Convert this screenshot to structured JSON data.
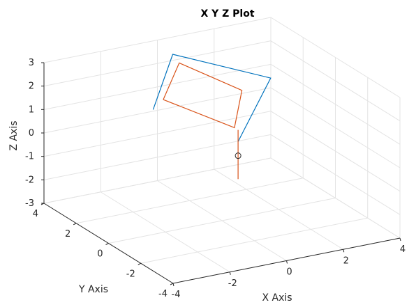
{
  "chart_data": {
    "type": "line3d",
    "title": "X Y Z Plot",
    "xlabel": "X Axis",
    "ylabel": "Y Axis",
    "zlabel": "Z Axis",
    "xlim": [
      -4,
      4
    ],
    "ylim": [
      -4,
      4
    ],
    "zlim": [
      -3,
      3
    ],
    "x_ticks": [
      "-4",
      "-2",
      "0",
      "2",
      "4"
    ],
    "y_ticks": [
      "-4",
      "-2",
      "0",
      "2",
      "4"
    ],
    "z_ticks": [
      "-3",
      "-2",
      "-1",
      "0",
      "1",
      "2",
      "3"
    ],
    "grid": true,
    "series": [
      {
        "color": "#0072BD",
        "points": [
          [
            -2.2,
            0.4,
            2.1
          ],
          [
            0.2,
            3.4,
            2.6
          ],
          [
            2.8,
            1.9,
            1.6
          ],
          [
            0.0,
            -1.0,
            0.8
          ]
        ]
      },
      {
        "color": "#D95319",
        "points": [
          [
            -1.5,
            1.0,
            2.1
          ],
          [
            0.2,
            3.0,
            2.4
          ],
          [
            1.5,
            1.4,
            1.6
          ],
          [
            0.1,
            -0.6,
            1.2
          ],
          [
            -1.5,
            1.0,
            2.1
          ]
        ]
      },
      {
        "color": "#D95319",
        "points": [
          [
            0.0,
            -1.0,
            1.3
          ],
          [
            0.0,
            -1.0,
            -0.8
          ]
        ]
      }
    ],
    "markers": [
      {
        "color": "#262626",
        "shape": "circle",
        "point": [
          0.0,
          -1.0,
          0.2
        ]
      }
    ]
  }
}
